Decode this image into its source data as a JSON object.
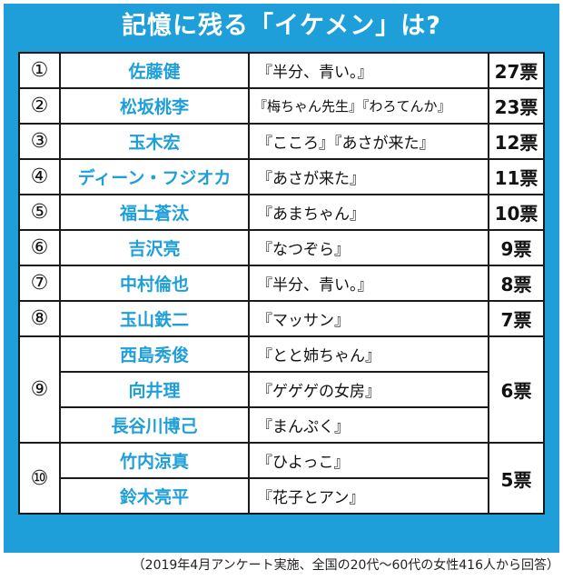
{
  "title": "記憶に残る「イケメン」は?",
  "rows": [
    {
      "rank": "①",
      "name": "佐藤健",
      "drama": "『半分、青い。』",
      "votes": "27票"
    },
    {
      "rank": "②",
      "name": "松坂桃李",
      "drama": "『梅ちゃん先生』『わろてんか』",
      "votes": "23票"
    },
    {
      "rank": "③",
      "name": "玉木宏",
      "drama": "『こころ』『あさが来た』",
      "votes": "12票"
    },
    {
      "rank": "④",
      "name": "ディーン・フジオカ",
      "drama": "『あさが来た』",
      "votes": "11票"
    },
    {
      "rank": "⑤",
      "name": "福士蒼汰",
      "drama": "『あまちゃん』",
      "votes": "10票"
    },
    {
      "rank": "⑥",
      "name": "吉沢亮",
      "drama": "『なつぞら』",
      "votes": "9票"
    },
    {
      "rank": "⑦",
      "name": "中村倫也",
      "drama": "『半分、青い。』",
      "votes": "8票"
    },
    {
      "rank": "⑧",
      "name": "玉山鉄二",
      "drama": "『マッサン』",
      "votes": "7票"
    }
  ],
  "group9": {
    "rank": "⑨",
    "votes": "6票",
    "members": [
      {
        "name": "西島秀俊",
        "drama": "『とと姉ちゃん』"
      },
      {
        "name": "向井理",
        "drama": "『ゲゲゲの女房』"
      },
      {
        "name": "長谷川博己",
        "drama": "『まんぷく』"
      }
    ]
  },
  "group10": {
    "rank": "⑩",
    "votes": "5票",
    "members": [
      {
        "name": "竹内涼真",
        "drama": "『ひよっこ』"
      },
      {
        "name": "鈴木亮平",
        "drama": "『花子とアン』"
      }
    ]
  },
  "footer": "（2019年4月アンケート実施、全国の20代〜60代の女性416人から回答）",
  "colors": {
    "frame": "#1e9fd9",
    "name_text": "#1e9fd9",
    "border": "#1a1a1a"
  }
}
